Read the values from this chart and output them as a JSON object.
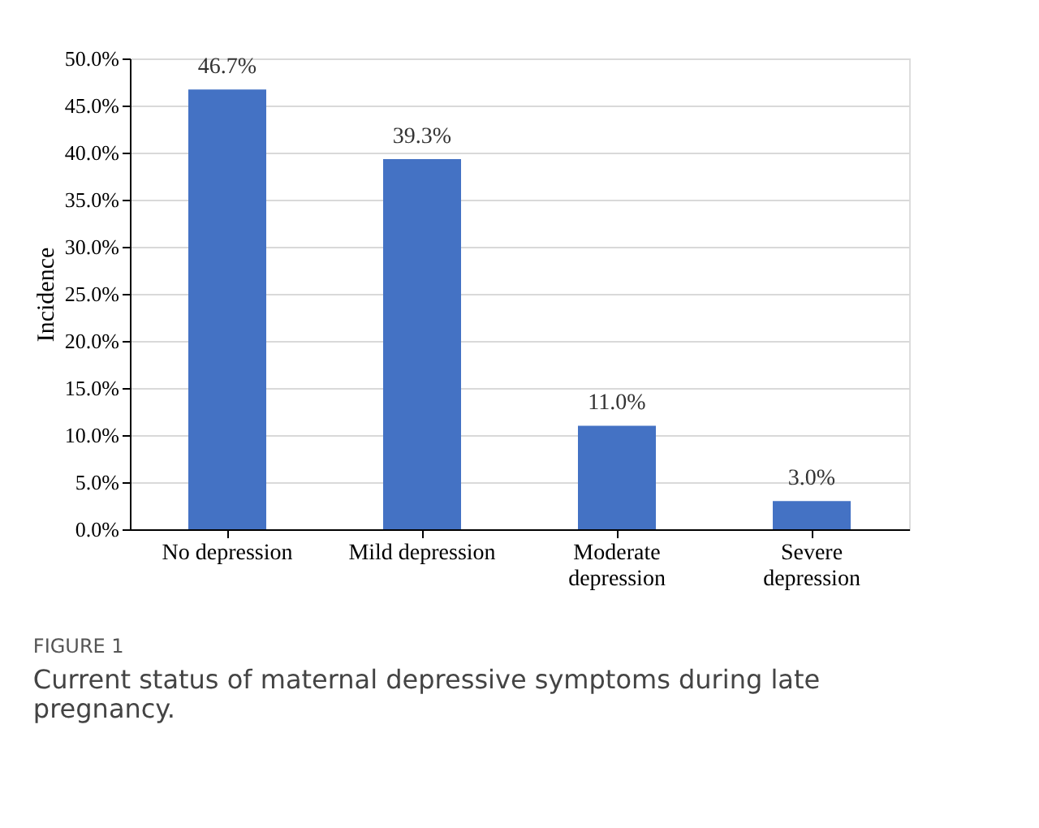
{
  "chart_data": {
    "type": "bar",
    "ylabel": "Incidence",
    "categories": [
      "No depression",
      "Mild depression",
      "Moderate depression",
      "Severe depression"
    ],
    "values": [
      46.7,
      39.3,
      11.0,
      3.0
    ],
    "value_labels": [
      "46.7%",
      "39.3%",
      "11.0%",
      "3.0%"
    ],
    "color": "#4472c4",
    "ylim": [
      0,
      50
    ],
    "yticks": [
      {
        "value": 0,
        "label": "0.0%"
      },
      {
        "value": 5,
        "label": "5.0%"
      },
      {
        "value": 10,
        "label": "10.0%"
      },
      {
        "value": 15,
        "label": "15.0%"
      },
      {
        "value": 20,
        "label": "20.0%"
      },
      {
        "value": 25,
        "label": "25.0%"
      },
      {
        "value": 30,
        "label": "30.0%"
      },
      {
        "value": 35,
        "label": "35.0%"
      },
      {
        "value": 40,
        "label": "40.0%"
      },
      {
        "value": 45,
        "label": "45.0%"
      },
      {
        "value": 50,
        "label": "50.0%"
      }
    ],
    "grid": "y",
    "annotations": [
      "FIGURE 1",
      "Current status of maternal depressive symptoms during late pregnancy."
    ]
  }
}
